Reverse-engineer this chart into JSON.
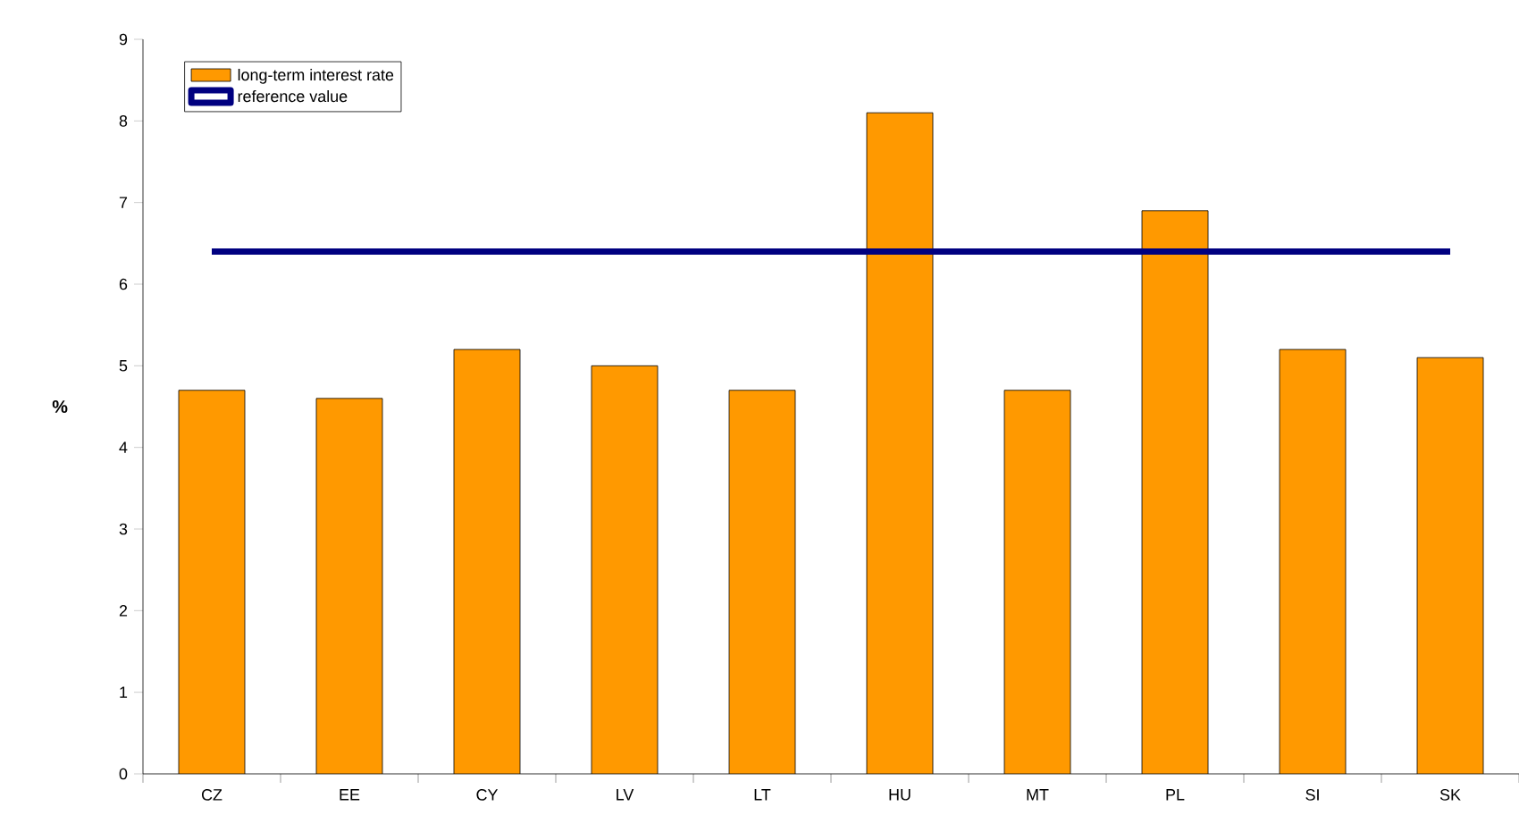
{
  "chart_data": {
    "type": "bar",
    "ylabel": "%",
    "categories": [
      "CZ",
      "EE",
      "CY",
      "LV",
      "LT",
      "HU",
      "MT",
      "PL",
      "SI",
      "SK"
    ],
    "series": [
      {
        "name": "long-term interest rate",
        "color": "#ff9900",
        "values": [
          4.7,
          4.6,
          5.2,
          5.0,
          4.7,
          8.1,
          4.7,
          6.9,
          5.2,
          5.1
        ]
      },
      {
        "name": "reference value",
        "type": "line",
        "color": "#000080",
        "values": [
          6.4,
          6.4,
          6.4,
          6.4,
          6.4,
          6.4,
          6.4,
          6.4,
          6.4,
          6.4
        ]
      }
    ],
    "ylim": [
      0,
      9
    ],
    "yticks": [
      0,
      1,
      2,
      3,
      4,
      5,
      6,
      7,
      8,
      9
    ],
    "grid": false,
    "legend": "top left"
  }
}
